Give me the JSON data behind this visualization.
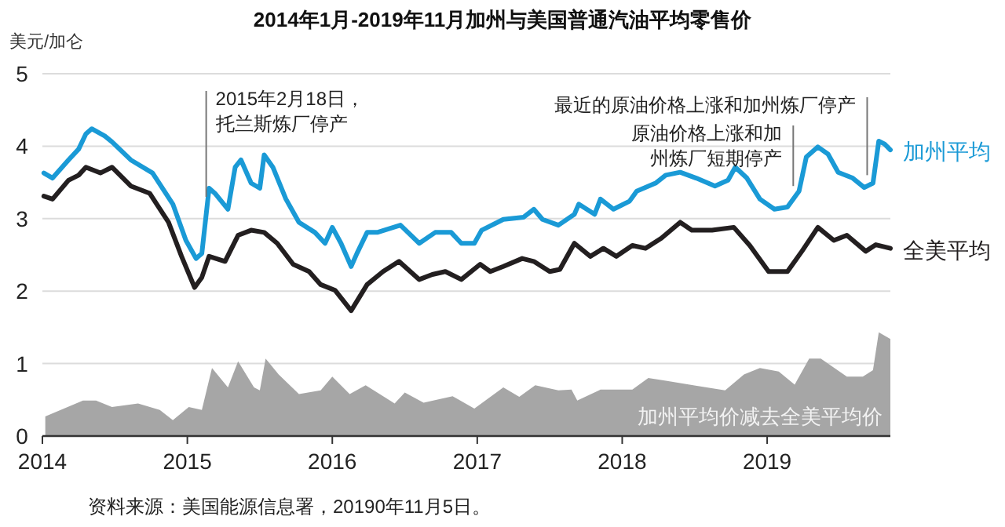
{
  "chart_data": {
    "type": "line",
    "title": "2014年1月-2019年11月加州与美国普通汽油平均零售价",
    "ylabel": "美元/加仑",
    "xlim": [
      2014,
      2019.85
    ],
    "xticks": [
      2014,
      2015,
      2016,
      2017,
      2018,
      2019
    ],
    "ylim": [
      0,
      5
    ],
    "yticks": [
      0,
      1,
      2,
      3,
      4,
      5
    ],
    "grid": "y",
    "series": [
      {
        "name": "加州平均价减去全美平均价",
        "type": "area",
        "color": "#a6a6a6",
        "x": [
          2014.02,
          2014.28,
          2014.37,
          2014.48,
          2014.66,
          2014.81,
          2014.9,
          2015.01,
          2015.1,
          2015.17,
          2015.28,
          2015.35,
          2015.46,
          2015.5,
          2015.54,
          2015.63,
          2015.77,
          2015.92,
          2016.0,
          2016.12,
          2016.23,
          2016.43,
          2016.5,
          2016.63,
          2016.83,
          2016.98,
          2017.18,
          2017.29,
          2017.4,
          2017.56,
          2017.65,
          2017.69,
          2017.85,
          2018.07,
          2018.18,
          2018.31,
          2018.49,
          2018.71,
          2018.84,
          2018.95,
          2019.08,
          2019.19,
          2019.29,
          2019.37,
          2019.55,
          2019.66,
          2019.73,
          2019.77,
          2019.85
        ],
        "values": [
          0.27,
          0.49,
          0.49,
          0.4,
          0.45,
          0.36,
          0.22,
          0.4,
          0.36,
          0.94,
          0.67,
          1.03,
          0.67,
          0.63,
          1.07,
          0.85,
          0.58,
          0.63,
          0.82,
          0.58,
          0.7,
          0.45,
          0.6,
          0.46,
          0.55,
          0.38,
          0.67,
          0.54,
          0.7,
          0.63,
          0.64,
          0.49,
          0.64,
          0.64,
          0.8,
          0.76,
          0.7,
          0.63,
          0.85,
          0.94,
          0.89,
          0.71,
          1.07,
          1.07,
          0.82,
          0.82,
          0.91,
          1.43,
          1.34
        ]
      },
      {
        "name": "全美平均",
        "color": "#231f20",
        "x": [
          2014.01,
          2014.07,
          2014.18,
          2014.25,
          2014.3,
          2014.4,
          2014.48,
          2014.61,
          2014.74,
          2014.87,
          2014.96,
          2015.05,
          2015.1,
          2015.15,
          2015.26,
          2015.35,
          2015.44,
          2015.53,
          2015.62,
          2015.73,
          2015.84,
          2015.92,
          2016.02,
          2016.13,
          2016.24,
          2016.35,
          2016.46,
          2016.6,
          2016.69,
          2016.78,
          2016.89,
          2017.02,
          2017.09,
          2017.18,
          2017.31,
          2017.39,
          2017.5,
          2017.57,
          2017.67,
          2017.78,
          2017.87,
          2017.96,
          2018.07,
          2018.16,
          2018.27,
          2018.4,
          2018.48,
          2018.62,
          2018.77,
          2018.88,
          2019.01,
          2019.14,
          2019.24,
          2019.35,
          2019.46,
          2019.55,
          2019.68,
          2019.75,
          2019.85
        ],
        "values": [
          3.31,
          3.27,
          3.53,
          3.6,
          3.71,
          3.63,
          3.71,
          3.45,
          3.35,
          2.95,
          2.48,
          2.05,
          2.19,
          2.48,
          2.41,
          2.77,
          2.84,
          2.81,
          2.66,
          2.37,
          2.27,
          2.09,
          2.01,
          1.73,
          2.09,
          2.27,
          2.41,
          2.16,
          2.23,
          2.27,
          2.16,
          2.37,
          2.27,
          2.34,
          2.45,
          2.41,
          2.27,
          2.3,
          2.66,
          2.48,
          2.59,
          2.48,
          2.63,
          2.59,
          2.73,
          2.95,
          2.84,
          2.84,
          2.88,
          2.63,
          2.27,
          2.27,
          2.55,
          2.88,
          2.7,
          2.77,
          2.55,
          2.64,
          2.59
        ]
      },
      {
        "name": "加州平均",
        "color": "#1a9ad6",
        "x": [
          2014.01,
          2014.07,
          2014.18,
          2014.25,
          2014.3,
          2014.34,
          2014.43,
          2014.48,
          2014.61,
          2014.76,
          2014.9,
          2014.99,
          2015.06,
          2015.1,
          2015.15,
          2015.19,
          2015.28,
          2015.33,
          2015.37,
          2015.44,
          2015.5,
          2015.53,
          2015.59,
          2015.68,
          2015.77,
          2015.88,
          2015.95,
          2016.0,
          2016.06,
          2016.13,
          2016.17,
          2016.24,
          2016.31,
          2016.47,
          2016.6,
          2016.71,
          2016.82,
          2016.89,
          2016.98,
          2017.03,
          2017.18,
          2017.32,
          2017.39,
          2017.45,
          2017.56,
          2017.67,
          2017.7,
          2017.81,
          2017.85,
          2017.94,
          2018.05,
          2018.1,
          2018.23,
          2018.3,
          2018.4,
          2018.51,
          2018.64,
          2018.73,
          2018.78,
          2018.86,
          2018.95,
          2019.05,
          2019.14,
          2019.22,
          2019.27,
          2019.35,
          2019.42,
          2019.49,
          2019.59,
          2019.67,
          2019.73,
          2019.77,
          2019.81,
          2019.85
        ],
        "values": [
          3.63,
          3.56,
          3.81,
          3.96,
          4.17,
          4.24,
          4.14,
          4.06,
          3.81,
          3.63,
          3.2,
          2.7,
          2.45,
          2.52,
          3.42,
          3.35,
          3.13,
          3.71,
          3.81,
          3.49,
          3.42,
          3.88,
          3.71,
          3.27,
          2.95,
          2.81,
          2.66,
          2.88,
          2.66,
          2.34,
          2.52,
          2.81,
          2.81,
          2.91,
          2.66,
          2.81,
          2.81,
          2.66,
          2.66,
          2.84,
          2.99,
          3.02,
          3.13,
          2.99,
          2.91,
          3.06,
          3.2,
          3.06,
          3.27,
          3.13,
          3.24,
          3.38,
          3.49,
          3.6,
          3.64,
          3.56,
          3.45,
          3.53,
          3.71,
          3.56,
          3.27,
          3.13,
          3.16,
          3.38,
          3.85,
          3.99,
          3.89,
          3.64,
          3.56,
          3.43,
          3.49,
          4.07,
          4.03,
          3.95
        ]
      }
    ],
    "annotations": [
      {
        "text": "2015年2月18日，托兰斯炼厂停产",
        "x": 2015.13,
        "y": 3.3
      },
      {
        "text": "原油价格上涨和加州炼厂短期停产",
        "x": 2019.18,
        "y": 3.45
      },
      {
        "text": "最近的原油价格上涨和加州炼厂停产",
        "x": 2019.69,
        "y": 3.6
      },
      "资料来源：美国能源信息署，20190年11月5日。"
    ]
  }
}
